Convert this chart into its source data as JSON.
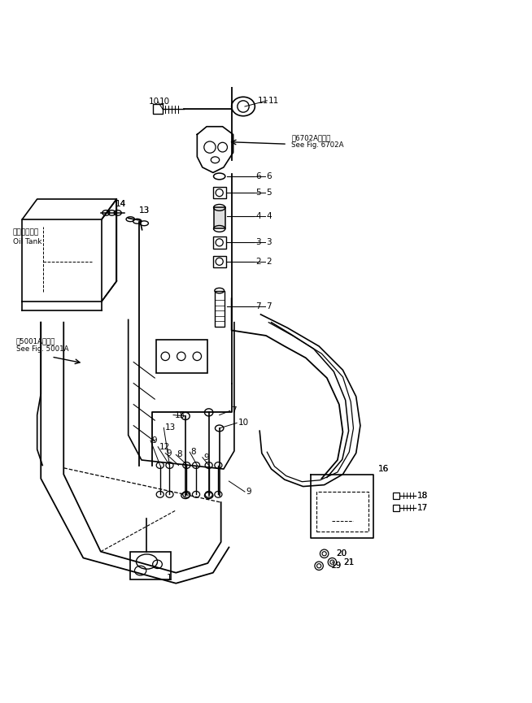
{
  "bg_color": "#ffffff",
  "line_color": "#000000",
  "line_width": 1.2,
  "fig_width": 6.54,
  "fig_height": 8.65,
  "labels": {
    "oil_tank_jp": "オイルタンク",
    "oil_tank_en": "Oil Tank",
    "see_6702A_jp": "第6702A図参照",
    "see_6702A_en": "See Fig. 6702A",
    "see_5001A_jp": "第5001A図参照",
    "see_5001A_en": "See Fig. 5001A"
  }
}
